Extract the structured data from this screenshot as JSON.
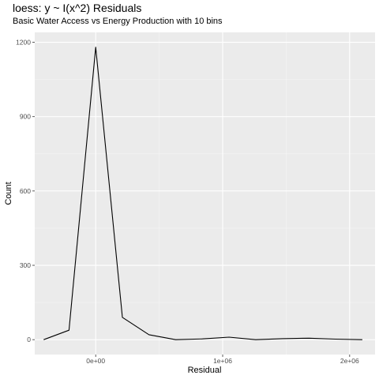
{
  "chart_data": {
    "type": "line",
    "title": "loess: y ~ I(x^2) Residuals",
    "subtitle": "Basic Water Access vs Energy Production with 10 bins",
    "xlabel": "Residual",
    "ylabel": "Count",
    "x_tick_values": [
      0,
      1000000,
      2000000
    ],
    "x_tick_labels": [
      "0e+00",
      "1e+06",
      "2e+06"
    ],
    "y_tick_values": [
      0,
      300,
      600,
      900,
      1200
    ],
    "y_tick_labels": [
      "0",
      "300",
      "600",
      "900",
      "1200"
    ],
    "xlim": [
      -480000,
      2200000
    ],
    "ylim": [
      -60,
      1240
    ],
    "grid": true,
    "series": [
      {
        "color": "#000000",
        "points": [
          {
            "x": -410000,
            "y": 0
          },
          {
            "x": -210000,
            "y": 38
          },
          {
            "x": 0,
            "y": 1180
          },
          {
            "x": 210000,
            "y": 90
          },
          {
            "x": 420000,
            "y": 20
          },
          {
            "x": 630000,
            "y": 0
          },
          {
            "x": 840000,
            "y": 3
          },
          {
            "x": 1050000,
            "y": 10
          },
          {
            "x": 1260000,
            "y": 0
          },
          {
            "x": 1470000,
            "y": 4
          },
          {
            "x": 1680000,
            "y": 6
          },
          {
            "x": 1890000,
            "y": 2
          },
          {
            "x": 2100000,
            "y": 0
          }
        ]
      }
    ]
  }
}
